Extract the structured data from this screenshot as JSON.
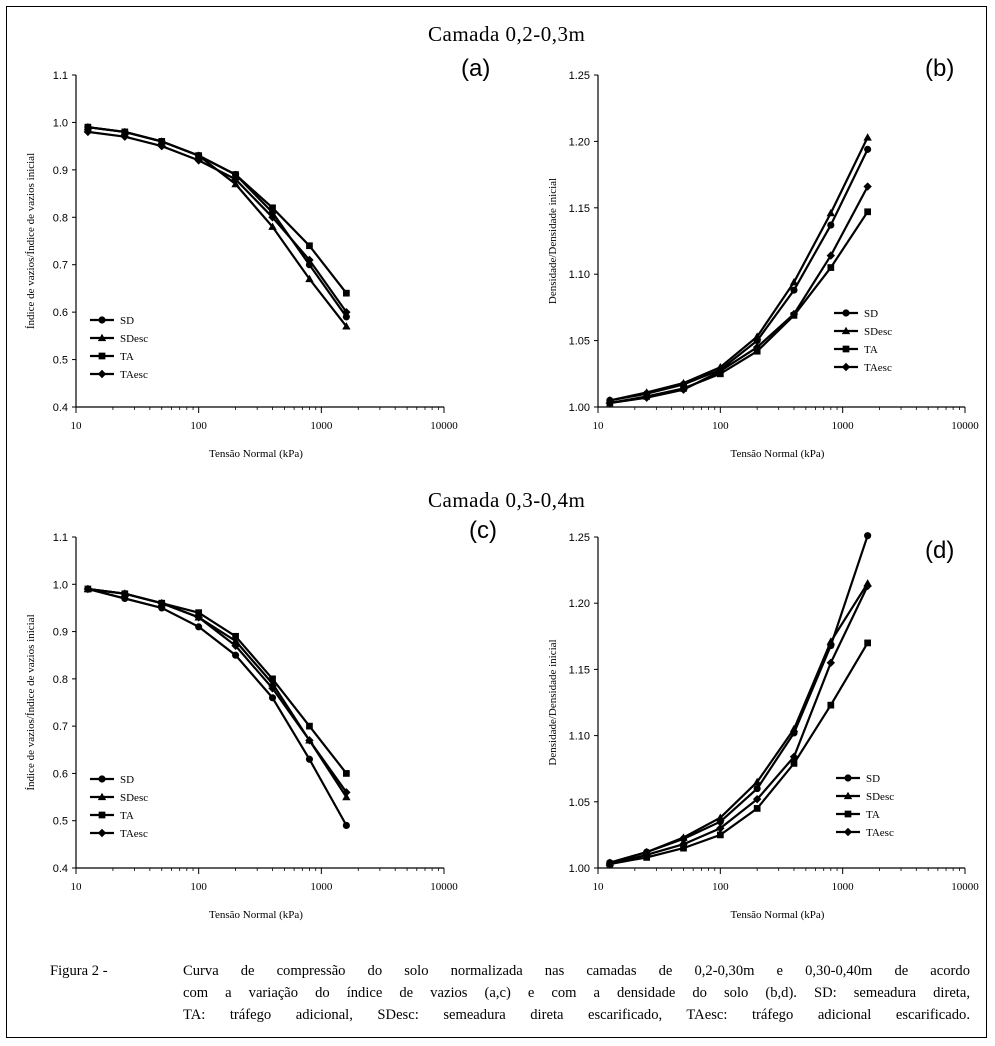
{
  "figure": {
    "section_top": "Camada 0,2-0,3m",
    "section_bottom": "Camada 0,3-0,4m",
    "caption_label": "Figura 2 -",
    "caption_lines": [
      "Curva de compressão do solo normalizada nas camadas de 0,2-0,30m e 0,30-0,40m de acordo",
      "com a variação do índice de vazios (a,c) e com a densidade do solo (b,d). SD: semeadura direta,",
      "TA: tráfego adicional, SDesc: semeadura direta escarificado, TAesc: tráfego adicional escarificado."
    ]
  },
  "chart_data": [
    {
      "panel": "(a)",
      "type": "line",
      "xscale": "log",
      "xlim": [
        10,
        10000
      ],
      "ylim": [
        0.4,
        1.1
      ],
      "xticks": [
        "10",
        "100",
        "1000",
        "10000"
      ],
      "yticks": [
        "0.4",
        "0.5",
        "0.6",
        "0.7",
        "0.8",
        "0.9",
        "1.0",
        "1.1"
      ],
      "xlabel": "Tensão Normal (kPa)",
      "ylabel": "Índice de vazios/Índice de vazios inicial",
      "legend_position": "lower-left",
      "x": [
        12.5,
        25,
        50,
        100,
        200,
        400,
        800,
        1600
      ],
      "series": [
        {
          "name": "SD",
          "marker": "circle",
          "values": [
            0.99,
            0.98,
            0.96,
            0.93,
            0.89,
            0.81,
            0.7,
            0.59
          ]
        },
        {
          "name": "SDesc",
          "marker": "triangle",
          "values": [
            0.99,
            0.98,
            0.96,
            0.93,
            0.87,
            0.78,
            0.67,
            0.57
          ]
        },
        {
          "name": "TA",
          "marker": "square",
          "values": [
            0.99,
            0.98,
            0.96,
            0.93,
            0.89,
            0.82,
            0.74,
            0.64
          ]
        },
        {
          "name": "TAesc",
          "marker": "diamond",
          "values": [
            0.98,
            0.97,
            0.95,
            0.92,
            0.88,
            0.8,
            0.71,
            0.6
          ]
        }
      ]
    },
    {
      "panel": "(b)",
      "type": "line",
      "xscale": "log",
      "xlim": [
        10,
        10000
      ],
      "ylim": [
        1.0,
        1.25
      ],
      "xticks": [
        "10",
        "100",
        "1000",
        "10000"
      ],
      "yticks": [
        "1.00",
        "1.05",
        "1.10",
        "1.15",
        "1.20",
        "1.25"
      ],
      "xlabel": "Tensão Normal (kPa)",
      "ylabel": "Densidade/Densidade inicial",
      "legend_position": "lower-right",
      "x": [
        12.5,
        25,
        50,
        100,
        200,
        400,
        800,
        1600
      ],
      "series": [
        {
          "name": "SD",
          "marker": "circle",
          "values": [
            1.005,
            1.01,
            1.017,
            1.028,
            1.05,
            1.088,
            1.137,
            1.194
          ]
        },
        {
          "name": "SDesc",
          "marker": "triangle",
          "values": [
            1.005,
            1.011,
            1.018,
            1.03,
            1.053,
            1.094,
            1.146,
            1.203
          ]
        },
        {
          "name": "TA",
          "marker": "square",
          "values": [
            1.003,
            1.008,
            1.014,
            1.025,
            1.042,
            1.069,
            1.105,
            1.147
          ]
        },
        {
          "name": "TAesc",
          "marker": "diamond",
          "values": [
            1.003,
            1.007,
            1.013,
            1.027,
            1.045,
            1.07,
            1.114,
            1.166
          ]
        }
      ]
    },
    {
      "panel": "(c)",
      "type": "line",
      "xscale": "log",
      "xlim": [
        10,
        10000
      ],
      "ylim": [
        0.4,
        1.1
      ],
      "xticks": [
        "10",
        "100",
        "1000",
        "10000"
      ],
      "yticks": [
        "0.4",
        "0.5",
        "0.6",
        "0.7",
        "0.8",
        "0.9",
        "1.0",
        "1.1"
      ],
      "xlabel": "Tensão Normal (kPa)",
      "ylabel": "Índice de vazios/Índice de vazios inicial",
      "legend_position": "lower-left",
      "x": [
        12.5,
        25,
        50,
        100,
        200,
        400,
        800,
        1600
      ],
      "series": [
        {
          "name": "SD",
          "marker": "circle",
          "values": [
            0.99,
            0.97,
            0.95,
            0.91,
            0.85,
            0.76,
            0.63,
            0.49
          ]
        },
        {
          "name": "SDesc",
          "marker": "triangle",
          "values": [
            0.99,
            0.98,
            0.96,
            0.93,
            0.88,
            0.79,
            0.67,
            0.55
          ]
        },
        {
          "name": "TA",
          "marker": "square",
          "values": [
            0.99,
            0.98,
            0.96,
            0.94,
            0.89,
            0.8,
            0.7,
            0.6
          ]
        },
        {
          "name": "TAesc",
          "marker": "diamond",
          "values": [
            0.99,
            0.98,
            0.96,
            0.93,
            0.87,
            0.78,
            0.67,
            0.56
          ]
        }
      ]
    },
    {
      "panel": "(d)",
      "type": "line",
      "xscale": "log",
      "xlim": [
        10,
        10000
      ],
      "ylim": [
        1.0,
        1.25
      ],
      "xticks": [
        "10",
        "100",
        "1000",
        "10000"
      ],
      "yticks": [
        "1.00",
        "1.05",
        "1.10",
        "1.15",
        "1.20",
        "1.25"
      ],
      "xlabel": "Tensão Normal (kPa)",
      "ylabel": "Densidade/Densidade inicial",
      "legend_position": "lower-right",
      "x": [
        12.5,
        25,
        50,
        100,
        200,
        400,
        800,
        1600
      ],
      "series": [
        {
          "name": "SD",
          "marker": "circle",
          "values": [
            1.004,
            1.012,
            1.022,
            1.035,
            1.06,
            1.102,
            1.168,
            1.251
          ]
        },
        {
          "name": "SDesc",
          "marker": "triangle",
          "values": [
            1.004,
            1.012,
            1.023,
            1.038,
            1.065,
            1.105,
            1.171,
            1.215
          ]
        },
        {
          "name": "TA",
          "marker": "square",
          "values": [
            1.003,
            1.008,
            1.015,
            1.025,
            1.045,
            1.079,
            1.123,
            1.17
          ]
        },
        {
          "name": "TAesc",
          "marker": "diamond",
          "values": [
            1.003,
            1.01,
            1.018,
            1.03,
            1.052,
            1.084,
            1.155,
            1.213
          ]
        }
      ]
    }
  ]
}
